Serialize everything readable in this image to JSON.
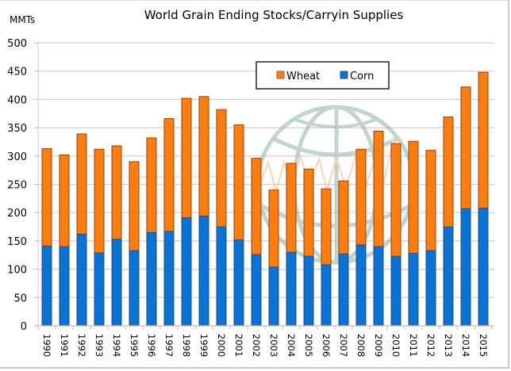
{
  "chart_data": {
    "type": "bar",
    "stacked": true,
    "title": "World Grain Ending Stocks/Carryin Supplies",
    "ylabel": "MMTs",
    "xlabel": "",
    "ylim": [
      0,
      500
    ],
    "yticks": [
      0,
      50,
      100,
      150,
      200,
      250,
      300,
      350,
      400,
      450,
      500
    ],
    "grid": true,
    "legend_position": "top-center",
    "categories": [
      "1990",
      "1991",
      "1992",
      "1993",
      "1994",
      "1995",
      "1996",
      "1997",
      "1998",
      "1999",
      "2000",
      "2001",
      "2002",
      "2003",
      "2004",
      "2005",
      "2006",
      "2007",
      "2008",
      "2009",
      "2010",
      "2011",
      "2012",
      "2013",
      "2014",
      "2015"
    ],
    "series": [
      {
        "name": "Corn",
        "color": "#0a74d6",
        "values": [
          141,
          140,
          162,
          129,
          153,
          133,
          165,
          167,
          191,
          194,
          175,
          152,
          126,
          104,
          130,
          123,
          108,
          127,
          143,
          140,
          123,
          128,
          133,
          175,
          207,
          208
        ]
      },
      {
        "name": "Wheat",
        "color": "#ff7d0e",
        "values": [
          172,
          162,
          177,
          183,
          165,
          157,
          167,
          199,
          211,
          211,
          207,
          203,
          170,
          136,
          157,
          154,
          134,
          129,
          169,
          204,
          199,
          198,
          177,
          194,
          215,
          240
        ]
      }
    ],
    "totals": [
      313,
      302,
      339,
      312,
      318,
      290,
      332,
      366,
      402,
      405,
      382,
      355,
      296,
      240,
      287,
      277,
      242,
      256,
      312,
      344,
      322,
      326,
      310,
      369,
      422,
      448
    ],
    "legend": [
      {
        "name": "Wheat",
        "color": "#ff7d0e"
      },
      {
        "name": "Corn",
        "color": "#0a74d6"
      }
    ]
  }
}
